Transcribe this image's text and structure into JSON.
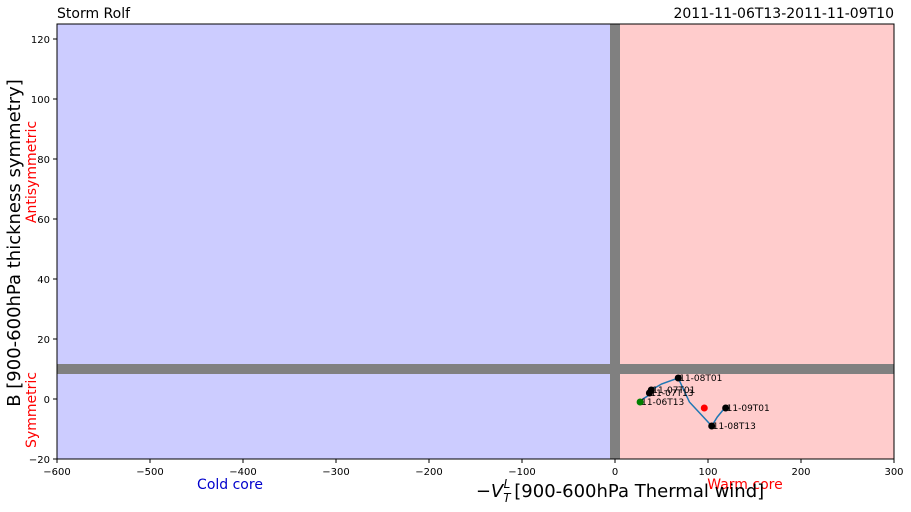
{
  "chart_data": {
    "type": "scatter",
    "title_left": "Storm Rolf",
    "title_right": "2011-11-06T13-2011-11-09T10",
    "xlabel": "[900-600hPa Thermal wind]",
    "xlabel_math": "−V",
    "xlabel_sup": "L",
    "xlabel_sub": "T",
    "ylabel": "B [900-600hPa thickness symmetry]",
    "xlim": [
      -600,
      300
    ],
    "ylim": [
      -20,
      125
    ],
    "xticks": [
      -600,
      -500,
      -400,
      -300,
      -200,
      -100,
      0,
      100,
      200,
      300
    ],
    "yticks": [
      -20,
      0,
      20,
      40,
      60,
      80,
      100,
      120
    ],
    "regions": {
      "cold": {
        "label": "Cold core",
        "color": "#ccccff",
        "label_color": "#0000cc"
      },
      "warm": {
        "label": "Warm core",
        "color": "#ffcccc",
        "label_color": "#ff0000"
      },
      "symmetric": {
        "label": "Symmetric",
        "color": "#ff0000"
      },
      "antisymmetric": {
        "label": "Antisymmetric",
        "color": "#ff0000"
      }
    },
    "threshold_lines": {
      "x": 0,
      "y": 10,
      "color": "#808080"
    },
    "track": {
      "color": "#1f77b4",
      "points": [
        {
          "x": 27,
          "y": -1
        },
        {
          "x": 30,
          "y": 0
        },
        {
          "x": 35,
          "y": 1
        },
        {
          "x": 38,
          "y": 2
        },
        {
          "x": 39,
          "y": 3
        },
        {
          "x": 50,
          "y": 5
        },
        {
          "x": 68,
          "y": 7
        },
        {
          "x": 80,
          "y": -1
        },
        {
          "x": 95,
          "y": -6
        },
        {
          "x": 104,
          "y": -9
        },
        {
          "x": 110,
          "y": -6
        },
        {
          "x": 118,
          "y": -3
        }
      ]
    },
    "markers": [
      {
        "x": 27,
        "y": -1,
        "color": "#008000",
        "label": "11-06T13"
      },
      {
        "x": 37,
        "y": 2,
        "color": "#000000",
        "label": "11-07T13"
      },
      {
        "x": 39,
        "y": 3,
        "color": "#000000",
        "label": "11-07T01"
      },
      {
        "x": 68,
        "y": 7,
        "color": "#000000",
        "label": "11-08T01"
      },
      {
        "x": 104,
        "y": -9,
        "color": "#000000",
        "label": "11-08T13"
      },
      {
        "x": 119,
        "y": -3,
        "color": "#000000",
        "label": "11-09T01"
      },
      {
        "x": 96,
        "y": -3,
        "color": "#ff0000",
        "label": ""
      }
    ]
  }
}
